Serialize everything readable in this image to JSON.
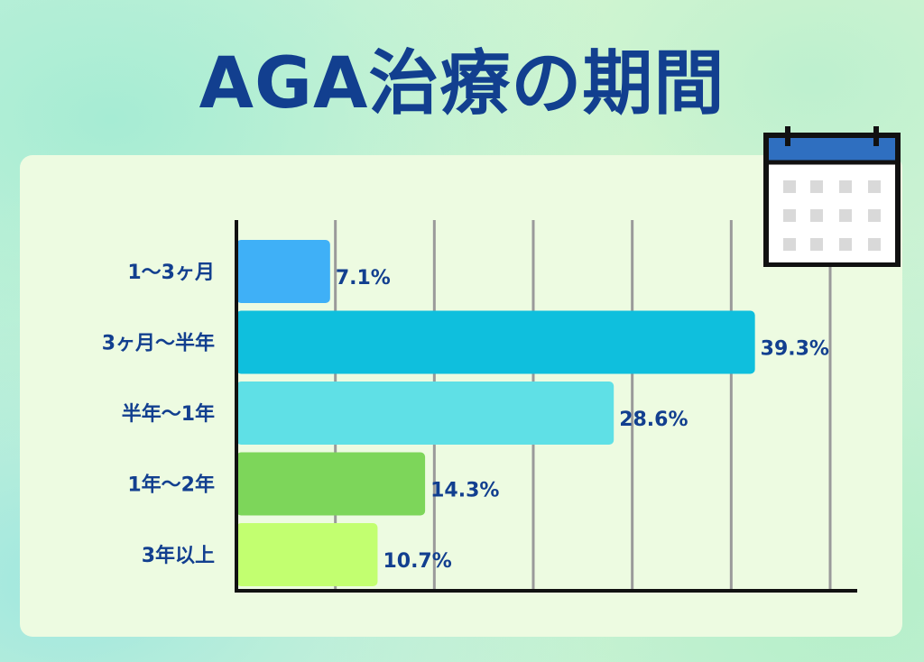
{
  "title": "AGA治療の期間",
  "icons": {
    "calendar": "calendar-icon"
  },
  "chart_data": {
    "type": "bar",
    "orientation": "horizontal",
    "title": "AGA治療の期間",
    "categories": [
      "1〜3ヶ月",
      "3ヶ月〜半年",
      "半年〜1年",
      "1年〜2年",
      "3年以上"
    ],
    "values": [
      7.1,
      39.3,
      28.6,
      14.3,
      10.7
    ],
    "value_labels": [
      "7.1%",
      "39.3%",
      "28.6%",
      "14.3%",
      "10.7%"
    ],
    "unit": "%",
    "xlim": [
      0,
      45
    ],
    "gridline_step": 7.5,
    "grid": true,
    "colors": [
      "#3fb0f7",
      "#0fbfdd",
      "#5fe0e6",
      "#7dd65a",
      "#c2ff70"
    ]
  }
}
